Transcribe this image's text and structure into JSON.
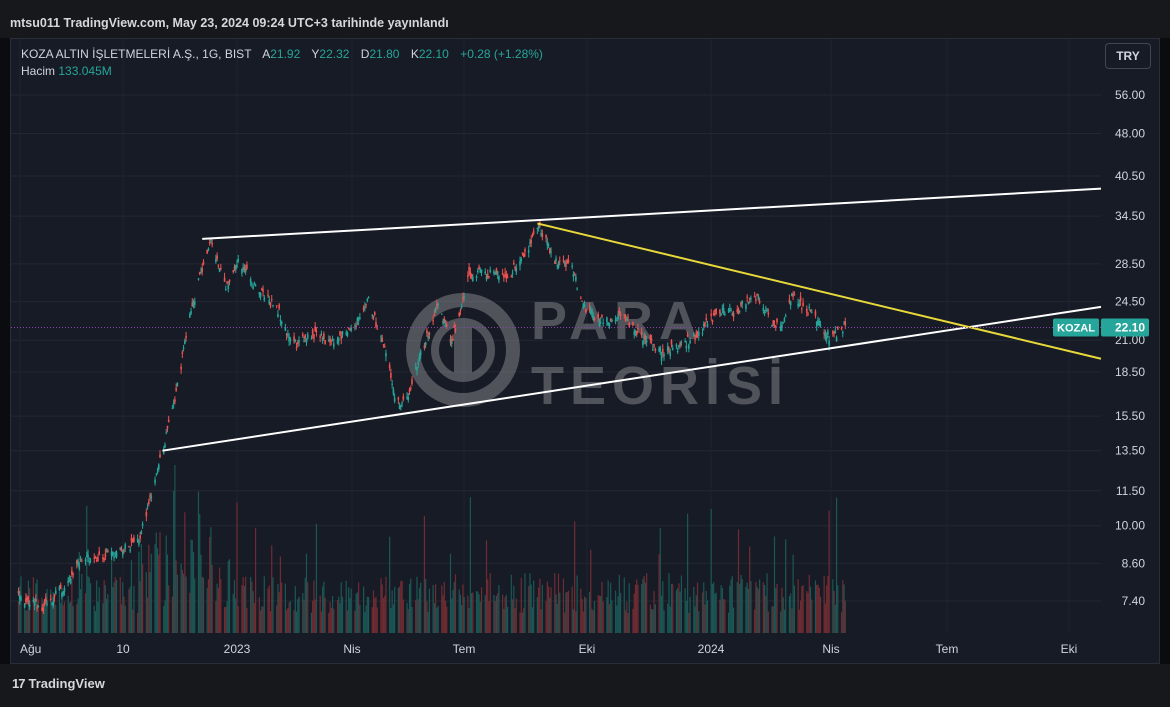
{
  "header": {
    "publish_line": "mtsu011 TradingView.com, May 23, 2024 09:24 UTC+3 tarihinde yayınlandı"
  },
  "legend": {
    "symbol": "KOZA ALTIN İŞLETMELERİ A.Ş., 1G, BIST",
    "open_label": "A",
    "open": "21.92",
    "high_label": "Y",
    "high": "22.32",
    "low_label": "D",
    "low": "21.80",
    "close_label": "K",
    "close": "22.10",
    "change": "+0.28 (+1.28%)",
    "volume_label": "Hacim",
    "volume": "133.045M"
  },
  "currency_button": "TRY",
  "watermark": {
    "line1": "PARA",
    "line2": "TEORİSİ"
  },
  "footer": {
    "brand": "TradingView",
    "logo_mark": "17"
  },
  "chart_data": {
    "type": "candlestick",
    "y_scale": "log",
    "y_ticks": [
      "56.00",
      "48.00",
      "40.50",
      "34.50",
      "28.50",
      "24.50",
      "21.00",
      "18.50",
      "15.50",
      "13.50",
      "11.50",
      "10.00",
      "8.60",
      "7.40"
    ],
    "x_ticks": [
      "Ağu",
      "10",
      "2023",
      "Nis",
      "Tem",
      "Eki",
      "2024",
      "Nis",
      "Tem",
      "Eki"
    ],
    "price_label": {
      "symbol": "KOZAL",
      "value": "22.10"
    },
    "colors": {
      "up": "#26a69a",
      "down": "#ef5350",
      "trendline_white": "#ffffff",
      "trendline_yellow": "#e8d93a",
      "price_line": "#8e44ad"
    },
    "price_path": [
      [
        "2022-07-25",
        7.6
      ],
      [
        "2022-08-15",
        7.2
      ],
      [
        "2022-09-01",
        7.8
      ],
      [
        "2022-09-15",
        8.7
      ],
      [
        "2022-10-01",
        8.8
      ],
      [
        "2022-10-15",
        9.0
      ],
      [
        "2022-11-01",
        9.4
      ],
      [
        "2022-11-10",
        11.0
      ],
      [
        "2022-11-20",
        13.5
      ],
      [
        "2022-12-01",
        17.0
      ],
      [
        "2022-12-10",
        22.0
      ],
      [
        "2022-12-20",
        27.0
      ],
      [
        "2022-12-28",
        31.5
      ],
      [
        "2023-01-10",
        26.0
      ],
      [
        "2023-01-20",
        29.0
      ],
      [
        "2023-02-05",
        25.5
      ],
      [
        "2023-02-20",
        24.0
      ],
      [
        "2023-03-05",
        20.5
      ],
      [
        "2023-03-20",
        21.5
      ],
      [
        "2023-04-05",
        20.8
      ],
      [
        "2023-04-25",
        22.5
      ],
      [
        "2023-05-05",
        24.8
      ],
      [
        "2023-05-20",
        19.5
      ],
      [
        "2023-05-28",
        16.2
      ],
      [
        "2023-06-05",
        16.8
      ],
      [
        "2023-06-20",
        21.0
      ],
      [
        "2023-07-01",
        24.5
      ],
      [
        "2023-07-10",
        20.5
      ],
      [
        "2023-07-25",
        27.5
      ],
      [
        "2023-08-10",
        27.5
      ],
      [
        "2023-08-25",
        27.0
      ],
      [
        "2023-09-10",
        30.0
      ],
      [
        "2023-09-18",
        33.5
      ],
      [
        "2023-10-01",
        29.0
      ],
      [
        "2023-10-15",
        28.5
      ],
      [
        "2023-10-25",
        24.0
      ],
      [
        "2023-11-10",
        22.5
      ],
      [
        "2023-11-25",
        23.2
      ],
      [
        "2023-12-10",
        21.5
      ],
      [
        "2023-12-25",
        20.0
      ],
      [
        "2024-01-10",
        20.5
      ],
      [
        "2024-01-25",
        21.5
      ],
      [
        "2024-02-10",
        23.5
      ],
      [
        "2024-02-25",
        23.5
      ],
      [
        "2024-03-10",
        25.5
      ],
      [
        "2024-03-25",
        22.5
      ],
      [
        "2024-04-01",
        22.0
      ],
      [
        "2024-04-10",
        25.0
      ],
      [
        "2024-04-25",
        23.5
      ],
      [
        "2024-05-10",
        21.3
      ],
      [
        "2024-05-23",
        22.1
      ]
    ],
    "trendlines": [
      {
        "color": "white",
        "from": [
          "2022-12-22",
          31.5
        ],
        "to": [
          "2024-12-15",
          38.5
        ]
      },
      {
        "color": "white",
        "from": [
          "2022-11-20",
          13.5
        ],
        "to": [
          "2024-12-15",
          24.0
        ]
      },
      {
        "color": "yellow",
        "from": [
          "2023-09-18",
          33.5
        ],
        "to": [
          "2024-12-15",
          19.5
        ]
      }
    ]
  }
}
